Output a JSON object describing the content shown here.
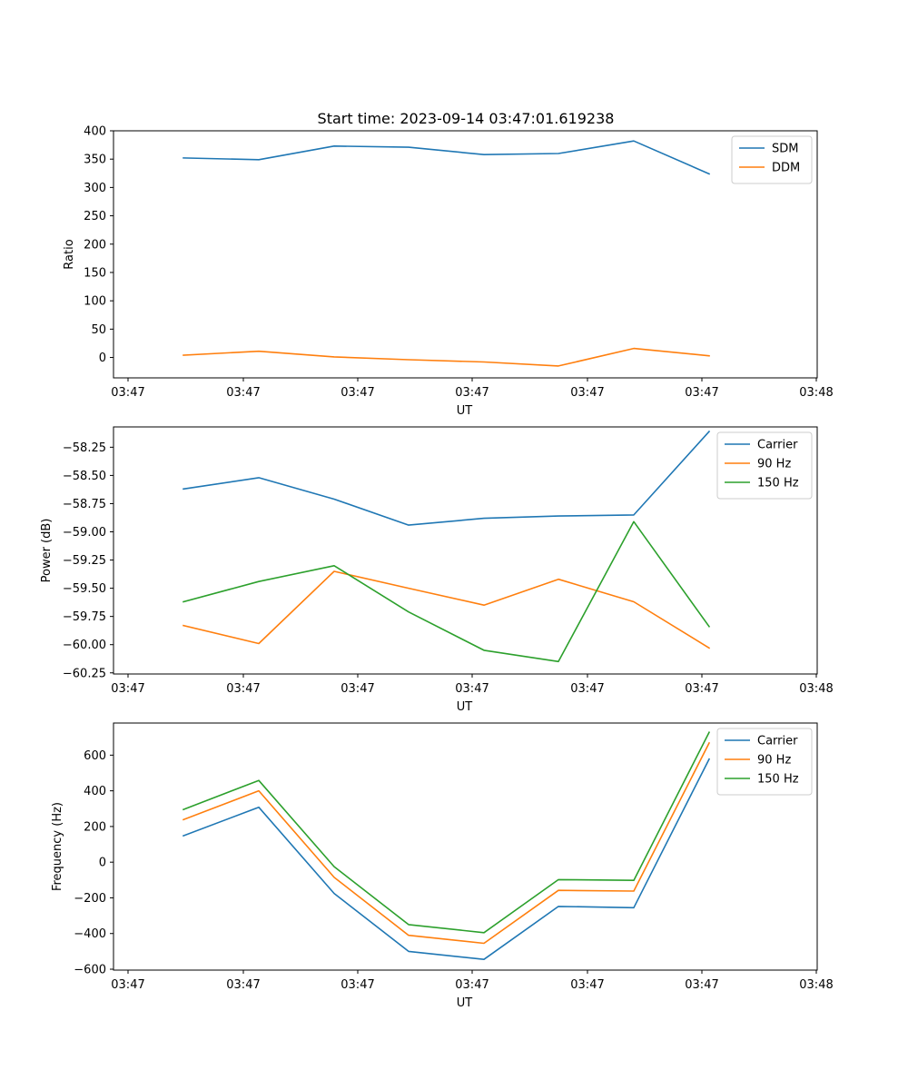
{
  "title": "Start time: 2023-09-14 03:47:01.619238",
  "colors": {
    "blue": "#1f77b4",
    "orange": "#ff7f0e",
    "green": "#2ca02c"
  },
  "chart_data": [
    {
      "type": "line",
      "xlabel": "UT",
      "ylabel": "Ratio",
      "x_tick_labels": [
        "03:47",
        "03:47",
        "03:47",
        "03:47",
        "03:47",
        "03:47",
        "03:48"
      ],
      "y_ticks": [
        0,
        50,
        100,
        150,
        200,
        250,
        300,
        350,
        400
      ],
      "y_tick_labels": [
        "0",
        "50",
        "100",
        "150",
        "200",
        "250",
        "300",
        "350",
        "400"
      ],
      "ylim": [
        -36,
        400
      ],
      "legend_position": "top-right",
      "series": [
        {
          "name": "SDM",
          "color": "blue",
          "values": [
            352,
            349,
            373,
            371,
            358,
            360,
            382,
            324
          ]
        },
        {
          "name": "DDM",
          "color": "orange",
          "values": [
            4,
            11,
            1,
            -4,
            -8,
            -15,
            16,
            3
          ]
        }
      ]
    },
    {
      "type": "line",
      "xlabel": "UT",
      "ylabel": "Power (dB)",
      "x_tick_labels": [
        "03:47",
        "03:47",
        "03:47",
        "03:47",
        "03:47",
        "03:47",
        "03:48"
      ],
      "y_ticks": [
        -58.25,
        -58.5,
        -58.75,
        -59.0,
        -59.25,
        -59.5,
        -59.75,
        -60.0,
        -60.25
      ],
      "y_tick_labels": [
        "−58.25",
        "−58.50",
        "−58.75",
        "−59.00",
        "−59.25",
        "−59.50",
        "−59.75",
        "−60.00",
        "−60.25"
      ],
      "ylim": [
        -60.26,
        -58.07
      ],
      "legend_position": "top-right",
      "series": [
        {
          "name": "Carrier",
          "color": "blue",
          "values": [
            -58.62,
            -58.52,
            -58.71,
            -58.94,
            -58.88,
            -58.86,
            -58.85,
            -58.11
          ]
        },
        {
          "name": "90 Hz",
          "color": "orange",
          "values": [
            -59.83,
            -59.99,
            -59.35,
            -59.5,
            -59.65,
            -59.42,
            -59.62,
            -60.03
          ]
        },
        {
          "name": "150 Hz",
          "color": "green",
          "values": [
            -59.62,
            -59.44,
            -59.3,
            -59.71,
            -60.05,
            -60.15,
            -58.91,
            -59.84
          ]
        }
      ]
    },
    {
      "type": "line",
      "xlabel": "UT",
      "ylabel": "Frequency (Hz)",
      "x_tick_labels": [
        "03:47",
        "03:47",
        "03:47",
        "03:47",
        "03:47",
        "03:47",
        "03:48"
      ],
      "y_ticks": [
        600,
        400,
        200,
        0,
        -200,
        -400,
        -600
      ],
      "y_tick_labels": [
        "600",
        "400",
        "200",
        "0",
        "−200",
        "−400",
        "−600"
      ],
      "ylim": [
        -605,
        780
      ],
      "legend_position": "top-right",
      "series": [
        {
          "name": "Carrier",
          "color": "blue",
          "values": [
            148,
            308,
            -175,
            -500,
            -545,
            -248,
            -255,
            578
          ]
        },
        {
          "name": "90 Hz",
          "color": "orange",
          "values": [
            238,
            400,
            -85,
            -410,
            -455,
            -158,
            -162,
            668
          ]
        },
        {
          "name": "150 Hz",
          "color": "green",
          "values": [
            295,
            458,
            -25,
            -350,
            -395,
            -98,
            -102,
            728
          ]
        }
      ]
    }
  ]
}
